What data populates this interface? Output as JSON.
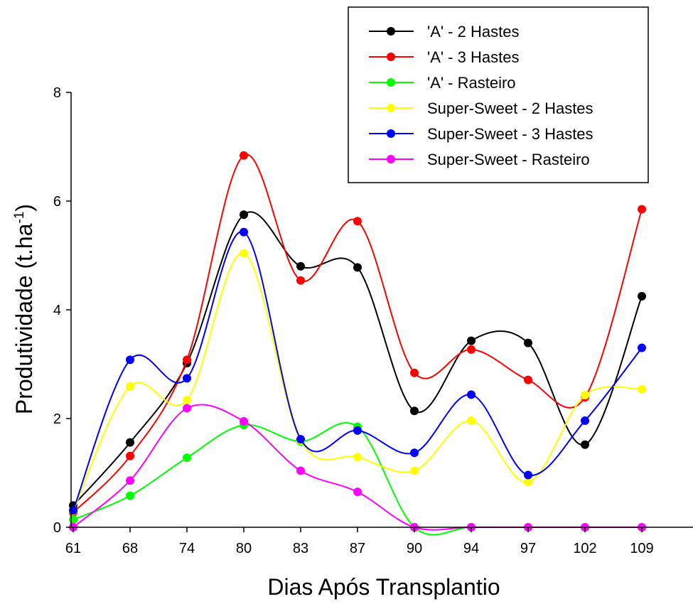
{
  "chart_data": {
    "type": "line",
    "title": "",
    "xlabel": "Dias Após Transplantio",
    "ylabel_main": "Produtividade (t.ha",
    "ylabel_sup": "-1",
    "ylabel_end": ")",
    "categories": [
      "61",
      "68",
      "74",
      "80",
      "83",
      "87",
      "90",
      "94",
      "97",
      "102",
      "109"
    ],
    "ylim": [
      0,
      8
    ],
    "yticks": [
      "0",
      "2",
      "4",
      "6",
      "8"
    ],
    "grid": false,
    "legend_position": "top-right",
    "series": [
      {
        "name": "'A' - 2 Hastes",
        "color": "#000000",
        "values": [
          0.4,
          1.56,
          3.02,
          5.75,
          4.8,
          4.78,
          2.14,
          3.43,
          3.39,
          1.52,
          4.25
        ]
      },
      {
        "name": "'A' - 3 Hastes",
        "color": "#ff0000",
        "values": [
          0.27,
          1.31,
          3.08,
          6.84,
          4.54,
          5.63,
          2.84,
          3.27,
          2.71,
          2.39,
          5.85
        ]
      },
      {
        "name": "'A' - Rasteiro",
        "color": "#00ff00",
        "values": [
          0.14,
          0.58,
          1.28,
          1.88,
          1.58,
          1.85,
          0.0,
          0.0,
          0.0,
          0.0,
          0.0
        ]
      },
      {
        "name": "Super-Sweet - 2 Hastes",
        "color": "#ffff00",
        "values": [
          0.3,
          2.59,
          2.34,
          5.04,
          1.6,
          1.29,
          1.04,
          1.96,
          0.83,
          2.43,
          2.54
        ]
      },
      {
        "name": "Super-Sweet - 3 Hastes",
        "color": "#0000ff",
        "values": [
          0.31,
          3.08,
          2.74,
          5.43,
          1.62,
          1.78,
          1.37,
          2.44,
          0.96,
          1.96,
          3.3
        ]
      },
      {
        "name": "Super-Sweet - Rasteiro",
        "color": "#ff00ff",
        "values": [
          0.0,
          0.86,
          2.19,
          1.95,
          1.04,
          0.65,
          0.0,
          0.0,
          0.0,
          0.0,
          0.0
        ]
      }
    ]
  }
}
